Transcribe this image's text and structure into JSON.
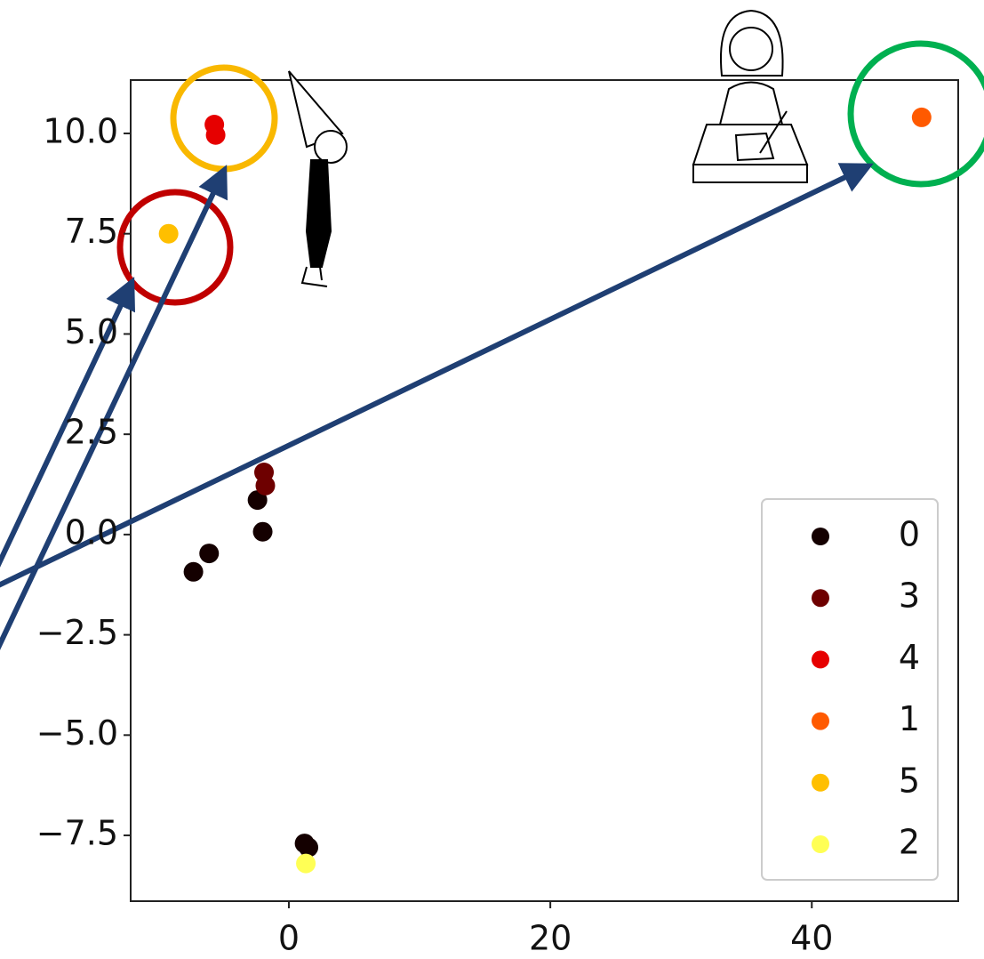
{
  "chart_data": {
    "type": "scatter",
    "xlim": [
      -12.1,
      51.2
    ],
    "ylim": [
      -9.14,
      11.33
    ],
    "xticks": [
      0,
      20,
      40
    ],
    "yticks": [
      {
        "value": -7.5,
        "label": "−7.5"
      },
      {
        "value": -5,
        "label": "−5.0"
      },
      {
        "value": -2.5,
        "label": "−2.5"
      },
      {
        "value": 0,
        "label": "0.0"
      },
      {
        "value": 2.5,
        "label": "2.5"
      },
      {
        "value": 5,
        "label": "5.0"
      },
      {
        "value": 7.5,
        "label": "7.5"
      },
      {
        "value": 10,
        "label": "10.0"
      }
    ],
    "legend": "lower right",
    "series": [
      {
        "name": "0",
        "color": "#140000",
        "x": [
          -2.4,
          -2.0,
          -6.1,
          -7.3,
          1.2,
          1.5
        ],
        "values": [
          0.86,
          0.07,
          -0.47,
          -0.93,
          -7.7,
          -7.8
        ]
      },
      {
        "name": "3",
        "color": "#6e0000",
        "x": [
          -1.9,
          -1.8
        ],
        "values": [
          1.55,
          1.22
        ]
      },
      {
        "name": "4",
        "color": "#e60000",
        "x": [
          -5.7,
          -5.6
        ],
        "values": [
          10.22,
          9.96
        ]
      },
      {
        "name": "1",
        "color": "#ff5a00",
        "x": [
          48.4
        ],
        "values": [
          10.4
        ]
      },
      {
        "name": "5",
        "color": "#ffbf00",
        "x": [
          -9.2
        ],
        "values": [
          7.5
        ]
      },
      {
        "name": "2",
        "color": "#ffff55",
        "x": [
          1.3
        ],
        "values": [
          -8.2
        ]
      }
    ]
  }
}
